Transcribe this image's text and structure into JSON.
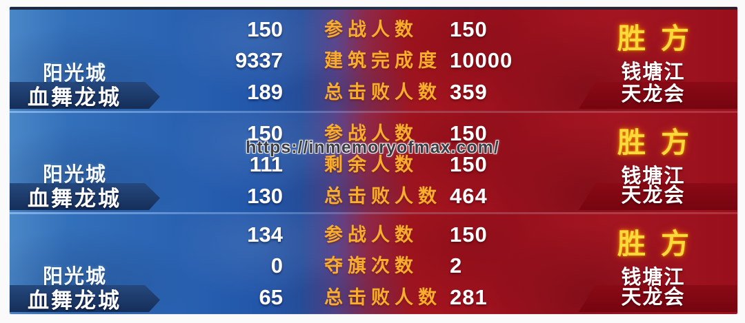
{
  "watermark": {
    "text": "https://inmemoryofmax.com/"
  },
  "colors": {
    "blue_side": "#2a63b2",
    "red_side": "#a5151f",
    "navy_band": "#1c3766",
    "dark_red_band": "#7e0811",
    "label_yellow": "#f8ad2e",
    "winner_gold": "#ffd83c",
    "text_white": "#ffffff"
  },
  "panels": [
    {
      "blue_team_top": "阳光城",
      "blue_team_bottom": "血舞龙城",
      "winner_title": "胜方",
      "red_team_top": "钱塘江",
      "red_team_bottom": "天龙会",
      "stats": [
        {
          "blue": "150",
          "label": "参战人数",
          "red": "150"
        },
        {
          "blue": "9337",
          "label": "建筑完成度",
          "red": "10000"
        },
        {
          "blue": "189",
          "label": "总击败人数",
          "red": "359"
        }
      ]
    },
    {
      "blue_team_top": "阳光城",
      "blue_team_bottom": "血舞龙城",
      "winner_title": "胜方",
      "red_team_top": "钱塘江",
      "red_team_bottom": "天龙会",
      "stats": [
        {
          "blue": "150",
          "label": "参战人数",
          "red": "150"
        },
        {
          "blue": "111",
          "label": "剩余人数",
          "red": "150"
        },
        {
          "blue": "130",
          "label": "总击败人数",
          "red": "464"
        }
      ]
    },
    {
      "blue_team_top": "阳光城",
      "blue_team_bottom": "血舞龙城",
      "winner_title": "胜方",
      "red_team_top": "钱塘江",
      "red_team_bottom": "天龙会",
      "stats": [
        {
          "blue": "134",
          "label": "参战人数",
          "red": "150"
        },
        {
          "blue": "0",
          "label": "夺旗次数",
          "red": "2"
        },
        {
          "blue": "65",
          "label": "总击败人数",
          "red": "281"
        }
      ]
    }
  ]
}
